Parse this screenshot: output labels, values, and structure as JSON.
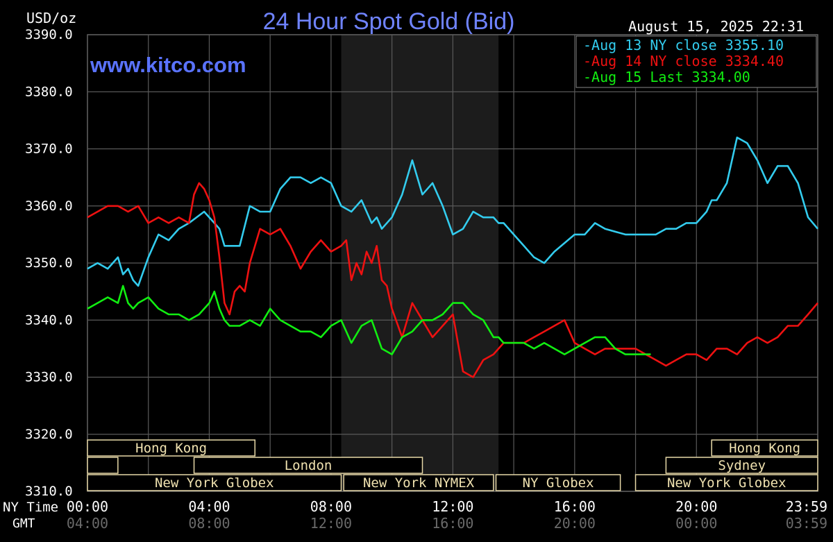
{
  "chart_data": {
    "type": "line",
    "title": "24 Hour Spot Gold (Bid)",
    "ylabel": "USD/oz",
    "watermark": "www.kitco.com",
    "timestamp": "August 15, 2025 22:31",
    "ylim": [
      3310,
      3390
    ],
    "yticks": [
      "3390.0",
      "3380.0",
      "3370.0",
      "3360.0",
      "3350.0",
      "3340.0",
      "3330.0",
      "3320.0",
      "3310.0"
    ],
    "xlim": [
      0,
      1439
    ],
    "x_row_label_ny": "NY Time",
    "x_row_label_gmt": "GMT",
    "xticks_ny": [
      {
        "t": 0,
        "label": "00:00"
      },
      {
        "t": 240,
        "label": "04:00"
      },
      {
        "t": 480,
        "label": "08:00"
      },
      {
        "t": 720,
        "label": "12:00"
      },
      {
        "t": 960,
        "label": "16:00"
      },
      {
        "t": 1200,
        "label": "20:00"
      },
      {
        "t": 1439,
        "label": "23:59"
      }
    ],
    "xticks_gmt": [
      {
        "t": 0,
        "label": "04:00"
      },
      {
        "t": 240,
        "label": "08:00"
      },
      {
        "t": 480,
        "label": "12:00"
      },
      {
        "t": 720,
        "label": "16:00"
      },
      {
        "t": 960,
        "label": "20:00"
      },
      {
        "t": 1200,
        "label": "00:00"
      },
      {
        "t": 1439,
        "label": "03:59"
      }
    ],
    "legend": [
      {
        "label": "-Aug 13 NY close 3355.10",
        "color": "#33ccee"
      },
      {
        "label": "-Aug 14 NY close 3334.40",
        "color": "#ee1111"
      },
      {
        "label": "-Aug 15 Last 3334.00",
        "color": "#11ee11"
      }
    ],
    "shaded_region": {
      "start": 500,
      "end": 810,
      "color": "#1c1c1c"
    },
    "sessions": [
      {
        "label": "Hong Kong",
        "start": 0,
        "end": 330,
        "row": 0
      },
      {
        "label": "",
        "start": 0,
        "end": 60,
        "row": 1
      },
      {
        "label": "London",
        "start": 210,
        "end": 660,
        "row": 1
      },
      {
        "label": "New York Globex",
        "start": 0,
        "end": 500,
        "row": 2
      },
      {
        "label": "New York NYMEX",
        "start": 505,
        "end": 800,
        "row": 2
      },
      {
        "label": "NY Globex",
        "start": 805,
        "end": 1050,
        "row": 2
      },
      {
        "label": "Hong Kong",
        "start": 1230,
        "end": 1439,
        "row": 0
      },
      {
        "label": "Sydney",
        "start": 1140,
        "end": 1439,
        "row": 1
      },
      {
        "label": "New York Globex",
        "start": 1080,
        "end": 1439,
        "row": 2
      }
    ],
    "series": [
      {
        "name": "Aug 13",
        "color": "#33ccee",
        "x": [
          0,
          20,
          40,
          60,
          70,
          80,
          90,
          100,
          120,
          140,
          160,
          180,
          200,
          230,
          240,
          250,
          260,
          270,
          280,
          300,
          320,
          340,
          360,
          380,
          400,
          420,
          440,
          460,
          480,
          500,
          520,
          540,
          560,
          570,
          580,
          600,
          620,
          640,
          660,
          680,
          700,
          720,
          740,
          760,
          780,
          800,
          810,
          820,
          840,
          860,
          880,
          900,
          920,
          960,
          980,
          1000,
          1020,
          1060,
          1080,
          1120,
          1140,
          1160,
          1180,
          1200,
          1220,
          1230,
          1240,
          1260,
          1280,
          1300,
          1320,
          1340,
          1360,
          1380,
          1400,
          1420,
          1439
        ],
        "y": [
          3349,
          3350,
          3349,
          3351,
          3348,
          3349,
          3347,
          3346,
          3351,
          3355,
          3354,
          3356,
          3357,
          3359,
          3358,
          3357,
          3356,
          3353,
          3353,
          3353,
          3360,
          3359,
          3359,
          3363,
          3365,
          3365,
          3364,
          3365,
          3364,
          3360,
          3359,
          3361,
          3357,
          3358,
          3356,
          3358,
          3362,
          3368,
          3362,
          3364,
          3360,
          3355,
          3356,
          3359,
          3358,
          3358,
          3357,
          3357,
          3355,
          3353,
          3351,
          3350,
          3352,
          3355,
          3355,
          3357,
          3356,
          3355,
          3355,
          3355,
          3356,
          3356,
          3357,
          3357,
          3359,
          3361,
          3361,
          3364,
          3372,
          3371,
          3368,
          3364,
          3367,
          3367,
          3364,
          3358,
          3356
        ]
      },
      {
        "name": "Aug 14",
        "color": "#ee1111",
        "x": [
          0,
          20,
          40,
          60,
          80,
          100,
          120,
          140,
          160,
          180,
          200,
          210,
          220,
          230,
          240,
          250,
          260,
          270,
          280,
          290,
          300,
          310,
          320,
          340,
          360,
          380,
          400,
          420,
          440,
          460,
          480,
          500,
          510,
          520,
          530,
          540,
          550,
          560,
          570,
          580,
          590,
          600,
          620,
          640,
          660,
          680,
          700,
          720,
          740,
          760,
          780,
          800,
          810,
          820,
          840,
          860,
          880,
          900,
          920,
          940,
          960,
          980,
          1000,
          1020,
          1040,
          1060,
          1080,
          1100,
          1120,
          1140,
          1160,
          1180,
          1200,
          1220,
          1240,
          1260,
          1280,
          1300,
          1320,
          1340,
          1360,
          1380,
          1400,
          1420,
          1439
        ],
        "y": [
          3358,
          3359,
          3360,
          3360,
          3359,
          3360,
          3357,
          3358,
          3357,
          3358,
          3357,
          3362,
          3364,
          3363,
          3361,
          3358,
          3351,
          3343,
          3341,
          3345,
          3346,
          3345,
          3350,
          3356,
          3355,
          3356,
          3353,
          3349,
          3352,
          3354,
          3352,
          3353,
          3354,
          3347,
          3350,
          3348,
          3352,
          3350,
          3353,
          3347,
          3346,
          3342,
          3337,
          3343,
          3340,
          3337,
          3339,
          3341,
          3331,
          3330,
          3333,
          3334,
          3335,
          3336,
          3336,
          3336,
          3337,
          3338,
          3339,
          3340,
          3336,
          3335,
          3334,
          3335,
          3335,
          3335,
          3335,
          3334,
          3333,
          3332,
          3333,
          3334,
          3334,
          3333,
          3335,
          3335,
          3334,
          3336,
          3337,
          3336,
          3337,
          3339,
          3339,
          3341,
          3343
        ]
      },
      {
        "name": "Aug 15",
        "color": "#11ee11",
        "x": [
          0,
          20,
          40,
          60,
          70,
          80,
          90,
          100,
          120,
          140,
          160,
          180,
          200,
          220,
          240,
          250,
          260,
          270,
          280,
          300,
          320,
          340,
          360,
          380,
          400,
          420,
          440,
          460,
          480,
          500,
          520,
          540,
          560,
          580,
          600,
          620,
          640,
          660,
          680,
          700,
          720,
          740,
          760,
          780,
          800,
          810,
          820,
          840,
          860,
          880,
          900,
          920,
          940,
          960,
          980,
          1000,
          1020,
          1040,
          1060,
          1080,
          1100,
          1110
        ],
        "y": [
          3342,
          3343,
          3344,
          3343,
          3346,
          3343,
          3342,
          3343,
          3344,
          3342,
          3341,
          3341,
          3340,
          3341,
          3343,
          3345,
          3342,
          3340,
          3339,
          3339,
          3340,
          3339,
          3342,
          3340,
          3339,
          3338,
          3338,
          3337,
          3339,
          3340,
          3336,
          3339,
          3340,
          3335,
          3334,
          3337,
          3338,
          3340,
          3340,
          3341,
          3343,
          3343,
          3341,
          3340,
          3337,
          3337,
          3336,
          3336,
          3336,
          3335,
          3336,
          3335,
          3334,
          3335,
          3336,
          3337,
          3337,
          3335,
          3334,
          3334,
          3334,
          3334
        ]
      }
    ]
  }
}
